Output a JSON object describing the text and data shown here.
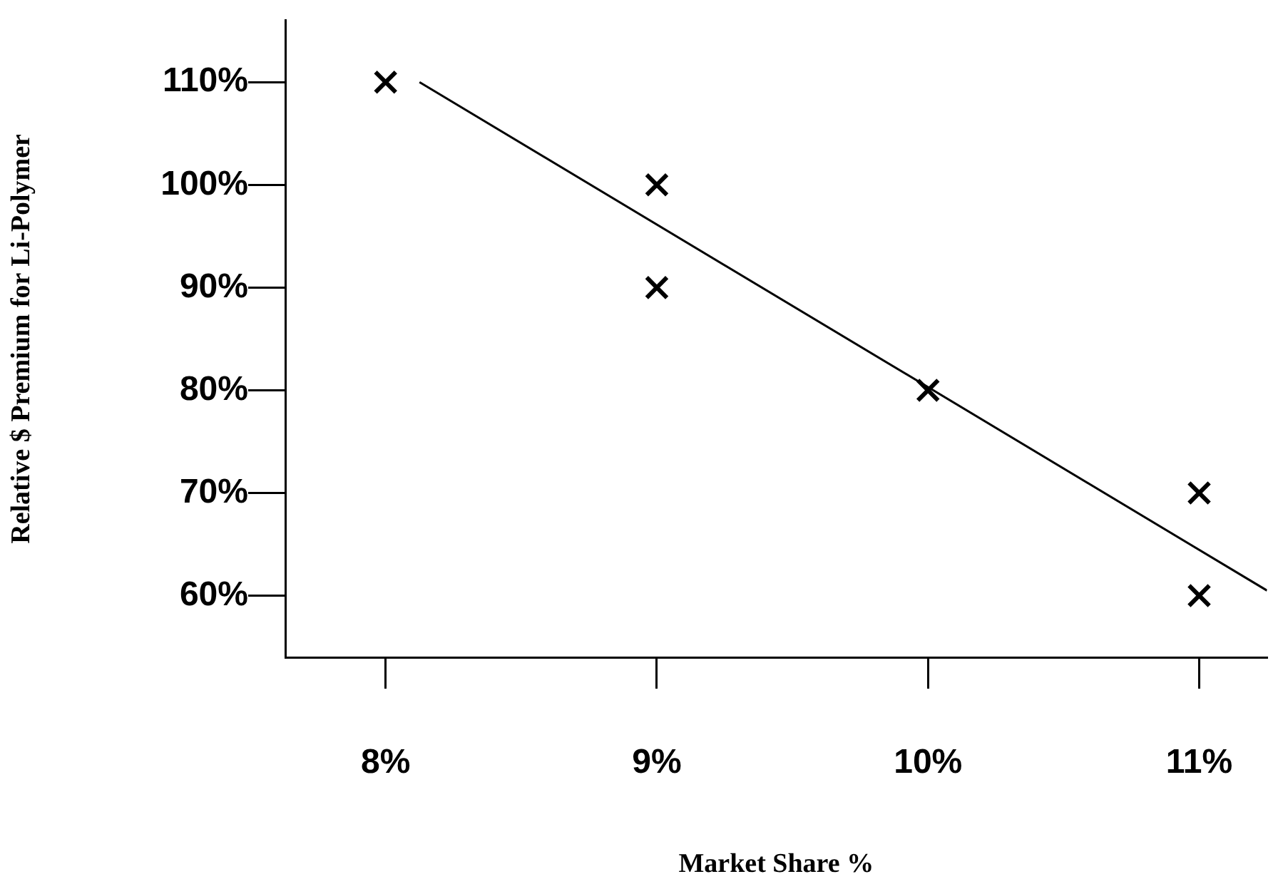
{
  "chart_data": {
    "type": "scatter",
    "xlabel": "Market Share %",
    "ylabel": "Relative $ Premium for Li-Polymer",
    "x": [
      8,
      9,
      9,
      10,
      11,
      11
    ],
    "series": [
      {
        "color": "#000000",
        "marker": "cross",
        "values": [
          110,
          100,
          90,
          80,
          70,
          60
        ]
      },
      {
        "type": "line",
        "color": "#000000",
        "marker": "none",
        "x": [
          8.125,
          11.25
        ],
        "values": [
          110,
          60.5
        ]
      }
    ],
    "xlim": [
      7.63,
      11.25
    ],
    "xticks": [
      {
        "value": 8,
        "label": "8%"
      },
      {
        "value": 9,
        "label": "9%"
      },
      {
        "value": 10,
        "label": "10%"
      },
      {
        "value": 11,
        "label": "11%"
      }
    ],
    "ylim": [
      54,
      116
    ],
    "yticks": [
      {
        "value": 60,
        "label": "60%"
      },
      {
        "value": 70,
        "label": "70%"
      },
      {
        "value": 80,
        "label": "80%"
      },
      {
        "value": 90,
        "label": "90%"
      },
      {
        "value": 100,
        "label": "100%"
      },
      {
        "value": 110,
        "label": "110%"
      }
    ],
    "grid": false,
    "legend": false
  }
}
